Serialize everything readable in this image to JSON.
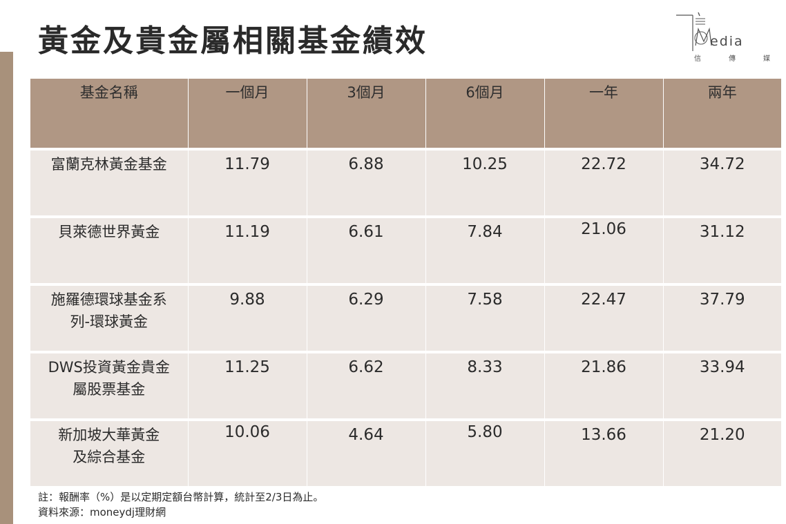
{
  "title": "黃金及貴金屬相關基金績效",
  "logo": {
    "word": "edia",
    "sub": [
      "信",
      "傳",
      "媒"
    ]
  },
  "table": {
    "headers": [
      "基金名稱",
      "一個月",
      "3個月",
      "6個月",
      "一年",
      "兩年"
    ],
    "rows": [
      {
        "name": [
          "富蘭克林黃金基金"
        ],
        "values": [
          "11.79",
          "6.88",
          "10.25",
          "22.72",
          "34.72"
        ]
      },
      {
        "name": [
          "貝萊德世界黃金"
        ],
        "values": [
          "11.19",
          "6.61",
          "7.84",
          "21.06",
          "31.12"
        ]
      },
      {
        "name": [
          "施羅德環球基金系",
          "列-環球黃金"
        ],
        "values": [
          "9.88",
          "6.29",
          "7.58",
          "22.47",
          "37.79"
        ]
      },
      {
        "name": [
          "DWS投資黃金貴金",
          "屬股票基金"
        ],
        "values": [
          "11.25",
          "6.62",
          "8.33",
          "21.86",
          "33.94"
        ]
      },
      {
        "name": [
          "新加坡大華黃金",
          "及綜合基金"
        ],
        "values": [
          "10.06",
          "4.64",
          "5.80",
          "13.66",
          "21.20"
        ]
      }
    ]
  },
  "notes": {
    "note": "註：報酬率（%）是以定期定額台幣計算，統計至2/3日為止。",
    "source": "資料來源：moneydj理財網"
  },
  "colors": {
    "accent_bar": "#a8917b",
    "header_bg": "#b09784",
    "row_bg": "#ede7e3"
  }
}
